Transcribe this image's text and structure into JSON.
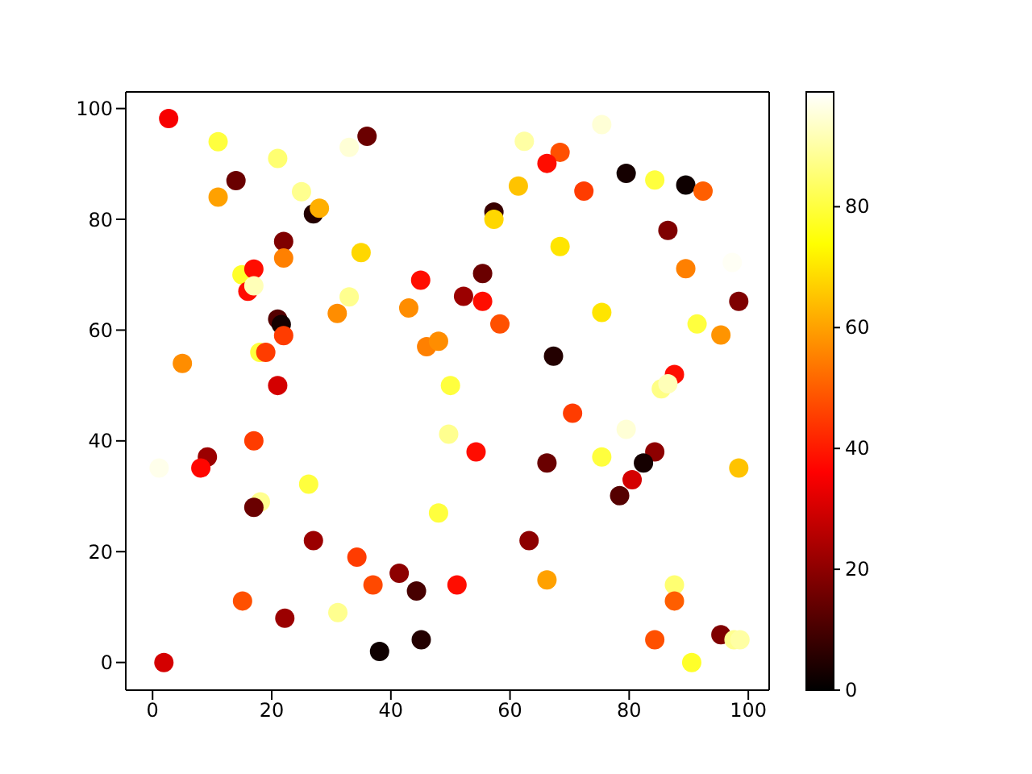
{
  "chart_data": {
    "type": "scatter",
    "marker": "circle",
    "xlim": [
      -4.5,
      103.5
    ],
    "ylim": [
      -5,
      103
    ],
    "xticks": [
      0,
      20,
      40,
      60,
      80,
      100
    ],
    "yticks": [
      0,
      20,
      40,
      60,
      80,
      100
    ],
    "clim": [
      0,
      99
    ],
    "cticks": [
      0,
      20,
      40,
      60,
      80
    ],
    "x": [
      2.7,
      11,
      14,
      11,
      21,
      25,
      33,
      36,
      27,
      28,
      22,
      22,
      15,
      17,
      16,
      17,
      35,
      33,
      31,
      45,
      43,
      21,
      21.6,
      22,
      5,
      18,
      19,
      21,
      46,
      48,
      50,
      75.4,
      62.4,
      68.4,
      66.2,
      79.5,
      84.3,
      89.5,
      92.4,
      72.4,
      61.4,
      57.3,
      57.3,
      86.5,
      68.4,
      97.3,
      89.5,
      55.4,
      52.2,
      55.4,
      58.3,
      75.4,
      98.4,
      91.4,
      95.4,
      67.3,
      87.6,
      85.4,
      86.5,
      17,
      9.2,
      8.1,
      1.1,
      26.2,
      18.1,
      17,
      27,
      34.3,
      37,
      41.4,
      44.3,
      15.1,
      22.2,
      31.1,
      38.1,
      45.1,
      1.9,
      48,
      49.7,
      51.1,
      70.5,
      79.5,
      54.3,
      66.2,
      75.4,
      84.3,
      82.4,
      80.5,
      78.4,
      98.4,
      63.2,
      66.2,
      87.6,
      87.6,
      84.3,
      95.4,
      97.6,
      98.6,
      90.5
    ],
    "values": [
      98.2,
      94,
      87,
      84,
      91,
      85,
      93,
      95,
      81,
      82,
      76,
      73,
      70,
      71,
      67,
      68,
      74,
      66,
      63,
      69,
      64,
      62,
      61,
      59,
      54,
      56,
      56,
      50,
      57,
      58,
      50,
      97.1,
      94.1,
      92.1,
      90.1,
      88.3,
      87.1,
      86.2,
      85.1,
      85.1,
      86,
      81.3,
      80,
      78,
      75.1,
      72.2,
      71.1,
      70.2,
      66.1,
      65.2,
      61.1,
      63.2,
      65.2,
      61.1,
      59.1,
      55.3,
      52,
      49.4,
      50.3,
      40,
      37.1,
      35.1,
      35.1,
      32.2,
      29,
      28,
      22,
      19,
      14,
      16.1,
      12.9,
      11.1,
      8,
      9,
      2,
      4.1,
      0,
      27,
      41.2,
      14,
      45,
      42.1,
      38,
      36,
      37.1,
      38,
      36,
      33,
      30.1,
      35.1,
      22,
      14.9,
      14,
      11.1,
      4.1,
      5,
      4.1,
      4.1,
      0
    ],
    "cvalues": [
      35,
      80,
      15,
      60,
      85,
      88,
      95,
      15,
      5,
      62,
      18,
      55,
      78,
      38,
      38,
      92,
      68,
      88,
      57,
      38,
      57,
      12,
      3,
      45,
      57,
      80,
      45,
      30,
      55,
      57,
      80,
      95,
      90,
      48,
      38,
      3,
      80,
      2,
      50,
      45,
      65,
      8,
      68,
      18,
      70,
      98,
      55,
      15,
      22,
      38,
      48,
      70,
      18,
      80,
      58,
      5,
      38,
      87,
      92,
      45,
      22,
      37,
      97,
      80,
      88,
      15,
      22,
      45,
      47,
      20,
      10,
      48,
      22,
      88,
      2,
      5,
      30,
      80,
      88,
      38,
      45,
      95,
      38,
      15,
      80,
      20,
      3,
      30,
      12,
      65,
      20,
      60,
      85,
      50,
      48,
      18,
      88,
      90,
      78
    ]
  }
}
